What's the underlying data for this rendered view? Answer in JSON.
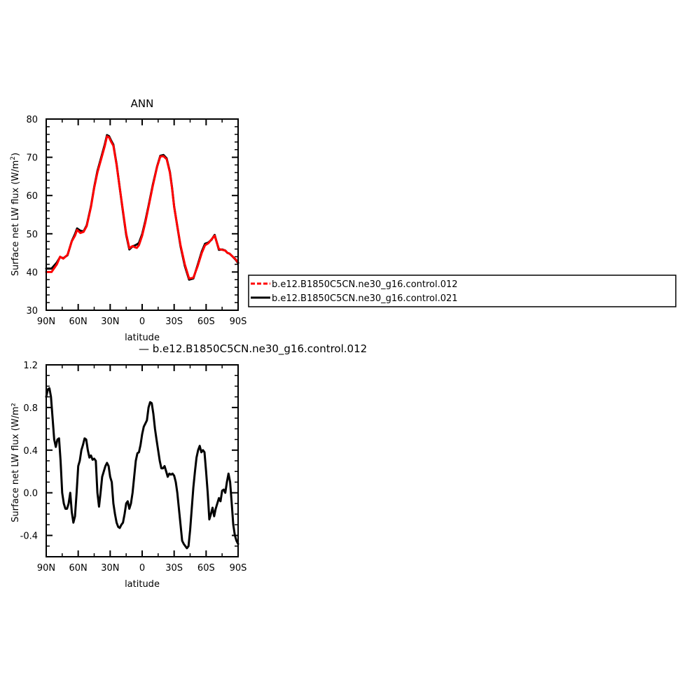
{
  "chart_data": [
    {
      "type": "line",
      "title": "ANN",
      "xlabel": "latitude",
      "ylabel": "Surface net LW flux (W/m²)",
      "ylabel_parts": {
        "main": "Surface net LW flux (W/m",
        "sup": "2",
        "end": ")"
      },
      "x_tick_labels": [
        "90N",
        "60N",
        "30N",
        "0",
        "30S",
        "60S",
        "90S"
      ],
      "x_ticks": [
        -90,
        -60,
        -30,
        0,
        30,
        60,
        90
      ],
      "xlim": [
        -90,
        90
      ],
      "ylim": [
        30,
        80
      ],
      "y_ticks": [
        30,
        40,
        50,
        60,
        70,
        80
      ],
      "y_tick_labels": [
        "30",
        "40",
        "50",
        "60",
        "70",
        "80"
      ],
      "grid": false,
      "legend_placement": "right",
      "x": [
        -90,
        -85,
        -80,
        -77,
        -74,
        -70,
        -66,
        -63,
        -61,
        -58,
        -55,
        -52,
        -48,
        -45,
        -42,
        -38,
        -35,
        -33,
        -31,
        -29,
        -27,
        -24,
        -21,
        -18,
        -15,
        -12,
        -9,
        -7,
        -5,
        -3,
        0,
        3,
        6,
        10,
        14,
        17,
        20,
        23,
        26,
        28,
        30,
        33,
        36,
        40,
        44,
        48,
        52,
        56,
        59,
        62,
        65,
        68,
        72,
        75,
        78,
        80,
        82,
        85,
        88,
        90
      ],
      "series": [
        {
          "name": "b.e12.B1850C5CN.ne30_g16.control.012",
          "color": "#ff0000",
          "style": "dashed",
          "values": [
            40.0,
            40.0,
            42.0,
            44.0,
            43.5,
            44.5,
            48.0,
            49.5,
            51.0,
            50.2,
            50.5,
            52.0,
            57.0,
            62.0,
            66.0,
            70.0,
            73.0,
            75.5,
            75.2,
            74.0,
            73.0,
            68.0,
            62.0,
            56.0,
            50.0,
            46.2,
            46.8,
            46.5,
            46.3,
            47.0,
            49.5,
            53.0,
            57.0,
            62.5,
            67.5,
            70.2,
            70.3,
            69.5,
            66.0,
            62.0,
            57.0,
            52.0,
            47.0,
            42.0,
            38.3,
            38.5,
            41.5,
            45.0,
            47.0,
            47.5,
            48.5,
            49.5,
            46.0,
            45.8,
            45.6,
            45.0,
            44.8,
            44.0,
            43.2,
            42.5
          ]
        },
        {
          "name": "b.e12.B1850C5CN.ne30_g16.control.021",
          "color": "#000000",
          "style": "solid",
          "values": [
            40.9,
            40.9,
            42.5,
            43.9,
            43.6,
            44.4,
            48.1,
            49.9,
            51.4,
            50.8,
            50.6,
            52.2,
            57.2,
            62.2,
            66.4,
            70.4,
            73.4,
            75.8,
            75.5,
            74.3,
            73.3,
            68.2,
            62.0,
            55.7,
            49.7,
            45.9,
            46.7,
            46.9,
            47.2,
            47.6,
            49.9,
            53.4,
            57.3,
            62.8,
            67.6,
            70.4,
            70.6,
            69.7,
            66.2,
            62.2,
            57.1,
            51.9,
            46.7,
            41.6,
            38.0,
            38.3,
            41.8,
            45.4,
            47.4,
            47.7,
            48.4,
            49.7,
            45.8,
            45.9,
            45.6,
            45.0,
            44.8,
            44.0,
            43.1,
            42.3
          ]
        }
      ]
    },
    {
      "type": "line",
      "title": "— b.e12.B1850C5CN.ne30_g16.control.012",
      "xlabel": "latitude",
      "ylabel": "Surface net LW flux (W/m²)",
      "x_tick_labels": [
        "90N",
        "60N",
        "30N",
        "0",
        "30S",
        "60S",
        "90S"
      ],
      "x_ticks": [
        -90,
        -60,
        -30,
        0,
        30,
        60,
        90
      ],
      "xlim": [
        -90,
        90
      ],
      "ylim": [
        -0.6,
        1.2
      ],
      "y_ticks": [
        -0.4,
        0.0,
        0.4,
        0.8,
        1.2
      ],
      "y_tick_labels": [
        "-0.4",
        "0.0",
        "0.4",
        "0.8",
        "1.2"
      ],
      "grid": false,
      "x": [
        -90,
        -88.5,
        -87,
        -85.5,
        -84,
        -82.5,
        -81,
        -79.5,
        -78,
        -76.5,
        -75,
        -73.5,
        -72,
        -70.5,
        -69,
        -67.5,
        -66,
        -64.5,
        -63,
        -61.5,
        -60,
        -58.5,
        -57,
        -55.5,
        -54,
        -52.5,
        -51,
        -49.5,
        -48,
        -46.5,
        -45,
        -43.5,
        -42,
        -40.5,
        -39,
        -37.5,
        -36,
        -34.5,
        -33,
        -31.5,
        -30,
        -28.5,
        -27,
        -25.5,
        -24,
        -22.5,
        -21,
        -19.5,
        -18,
        -16.5,
        -15,
        -13.5,
        -12,
        -10.5,
        -9,
        -7.5,
        -6,
        -4.5,
        -3,
        -1.5,
        0,
        1.5,
        3,
        4.5,
        6,
        7.5,
        9,
        10.5,
        12,
        13.5,
        15,
        16.5,
        18,
        19.5,
        21,
        22.5,
        24,
        25.5,
        27,
        28.5,
        30,
        31.5,
        33,
        34.5,
        36,
        37.5,
        39,
        40.5,
        42,
        43.5,
        45,
        46.5,
        48,
        49.5,
        51,
        52.5,
        54,
        55.5,
        57,
        58.5,
        60,
        61.5,
        63,
        64.5,
        66,
        67.5,
        69,
        70.5,
        72,
        73.5,
        75,
        76.5,
        78,
        79.5,
        81,
        82.5,
        84,
        85.5,
        87,
        88.5,
        90
      ],
      "series": [
        {
          "name": "b.e12.B1850C5CN.ne30_g16.control.012",
          "color": "#000000",
          "style": "solid",
          "values": [
            0.9,
            0.97,
            0.98,
            0.9,
            0.7,
            0.5,
            0.43,
            0.5,
            0.51,
            0.3,
            0.0,
            -0.1,
            -0.15,
            -0.15,
            -0.1,
            0.0,
            -0.18,
            -0.28,
            -0.22,
            0.0,
            0.25,
            0.3,
            0.4,
            0.45,
            0.51,
            0.5,
            0.4,
            0.33,
            0.35,
            0.31,
            0.32,
            0.3,
            0.0,
            -0.13,
            0.0,
            0.15,
            0.2,
            0.25,
            0.28,
            0.25,
            0.15,
            0.1,
            -0.1,
            -0.2,
            -0.28,
            -0.32,
            -0.33,
            -0.3,
            -0.28,
            -0.2,
            -0.1,
            -0.08,
            -0.15,
            -0.1,
            0.0,
            0.15,
            0.3,
            0.37,
            0.38,
            0.45,
            0.55,
            0.62,
            0.65,
            0.68,
            0.8,
            0.85,
            0.84,
            0.74,
            0.6,
            0.5,
            0.4,
            0.3,
            0.23,
            0.23,
            0.25,
            0.2,
            0.15,
            0.18,
            0.17,
            0.18,
            0.16,
            0.1,
            0.0,
            -0.15,
            -0.3,
            -0.45,
            -0.48,
            -0.5,
            -0.52,
            -0.5,
            -0.35,
            -0.15,
            0.05,
            0.2,
            0.33,
            0.4,
            0.44,
            0.38,
            0.4,
            0.38,
            0.2,
            0.0,
            -0.25,
            -0.2,
            -0.14,
            -0.22,
            -0.15,
            -0.1,
            -0.05,
            -0.08,
            0.02,
            0.03,
            0.0,
            0.1,
            0.18,
            0.1,
            -0.1,
            -0.3,
            -0.4,
            -0.45,
            -0.48
          ]
        }
      ]
    }
  ],
  "legend": {
    "items": [
      {
        "label": "b.e12.B1850C5CN.ne30_g16.control.012",
        "color": "#ff0000",
        "style": "dashed"
      },
      {
        "label": "b.e12.B1850C5CN.ne30_g16.control.021",
        "color": "#000000",
        "style": "solid"
      }
    ]
  }
}
